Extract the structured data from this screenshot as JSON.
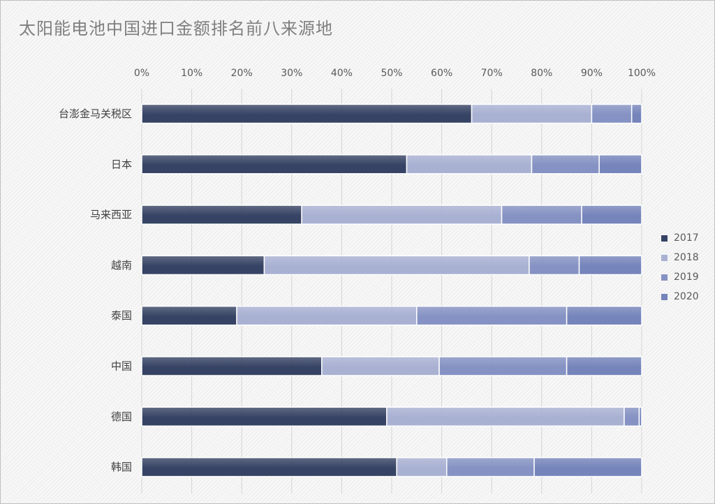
{
  "chart_data": {
    "type": "bar",
    "orientation": "horizontal",
    "stacked": true,
    "normalized": true,
    "title": "太阳能电池中国进口金额排名前八来源地",
    "categories": [
      "台澎金马关税区",
      "日本",
      "马来西亚",
      "越南",
      "泰国",
      "中国",
      "德国",
      "韩国"
    ],
    "x_ticks": [
      "0%",
      "10%",
      "20%",
      "30%",
      "40%",
      "50%",
      "60%",
      "70%",
      "80%",
      "90%",
      "100%"
    ],
    "xlim": [
      0,
      1
    ],
    "x_axis_position": "top",
    "grid": true,
    "legend_position": "right",
    "series": [
      {
        "name": "2017",
        "color": "#364364",
        "values": [
          0.66,
          0.53,
          0.32,
          0.245,
          0.19,
          0.36,
          0.49,
          0.51
        ]
      },
      {
        "name": "2018",
        "color": "#a9b1d3",
        "values": [
          0.24,
          0.25,
          0.4,
          0.53,
          0.36,
          0.235,
          0.475,
          0.1
        ]
      },
      {
        "name": "2019",
        "color": "#8592c3",
        "values": [
          0.08,
          0.135,
          0.16,
          0.1,
          0.3,
          0.255,
          0.03,
          0.175
        ]
      },
      {
        "name": "2020",
        "color": "#7584bb",
        "values": [
          0.02,
          0.085,
          0.12,
          0.125,
          0.15,
          0.15,
          0.005,
          0.215
        ]
      }
    ]
  }
}
